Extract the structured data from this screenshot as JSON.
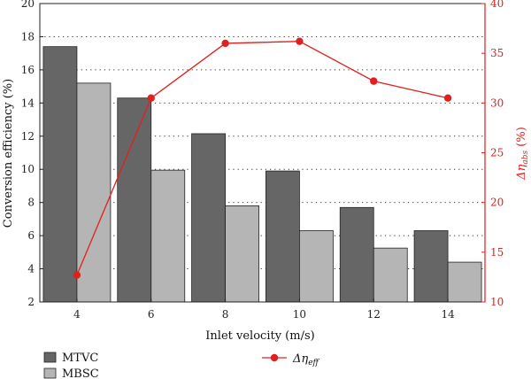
{
  "chart_data": {
    "type": "bar",
    "categories": [
      "4",
      "6",
      "8",
      "10",
      "12",
      "14"
    ],
    "xlabel": "Inlet velocity (m/s)",
    "ylabel": "Conversion efficiency (%)",
    "ylim": [
      2,
      20
    ],
    "yticks": [
      2,
      4,
      6,
      8,
      10,
      12,
      14,
      16,
      18,
      20
    ],
    "y2label_prefix": "Δη",
    "y2label_sub": "abs",
    "y2label_suffix": " (%)",
    "y2lim": [
      10,
      40
    ],
    "y2ticks": [
      10,
      15,
      20,
      25,
      30,
      35,
      40
    ],
    "grid": "horizontal dotted",
    "series": [
      {
        "name": "MTVC",
        "kind": "bar",
        "axis": "left",
        "color": "#666666",
        "values": [
          17.4,
          14.3,
          12.15,
          9.9,
          7.7,
          6.3
        ]
      },
      {
        "name": "MBSC",
        "kind": "bar",
        "axis": "left",
        "color": "#b5b5b5",
        "values": [
          15.2,
          9.95,
          7.8,
          6.3,
          5.25,
          4.4
        ]
      },
      {
        "name_prefix": "Δη",
        "name_sub": "eff",
        "kind": "line",
        "axis": "right",
        "color": "#e0201c",
        "values": [
          12.7,
          30.5,
          36.0,
          36.2,
          32.2,
          30.5
        ]
      }
    ],
    "legend_placement": "bottom"
  }
}
